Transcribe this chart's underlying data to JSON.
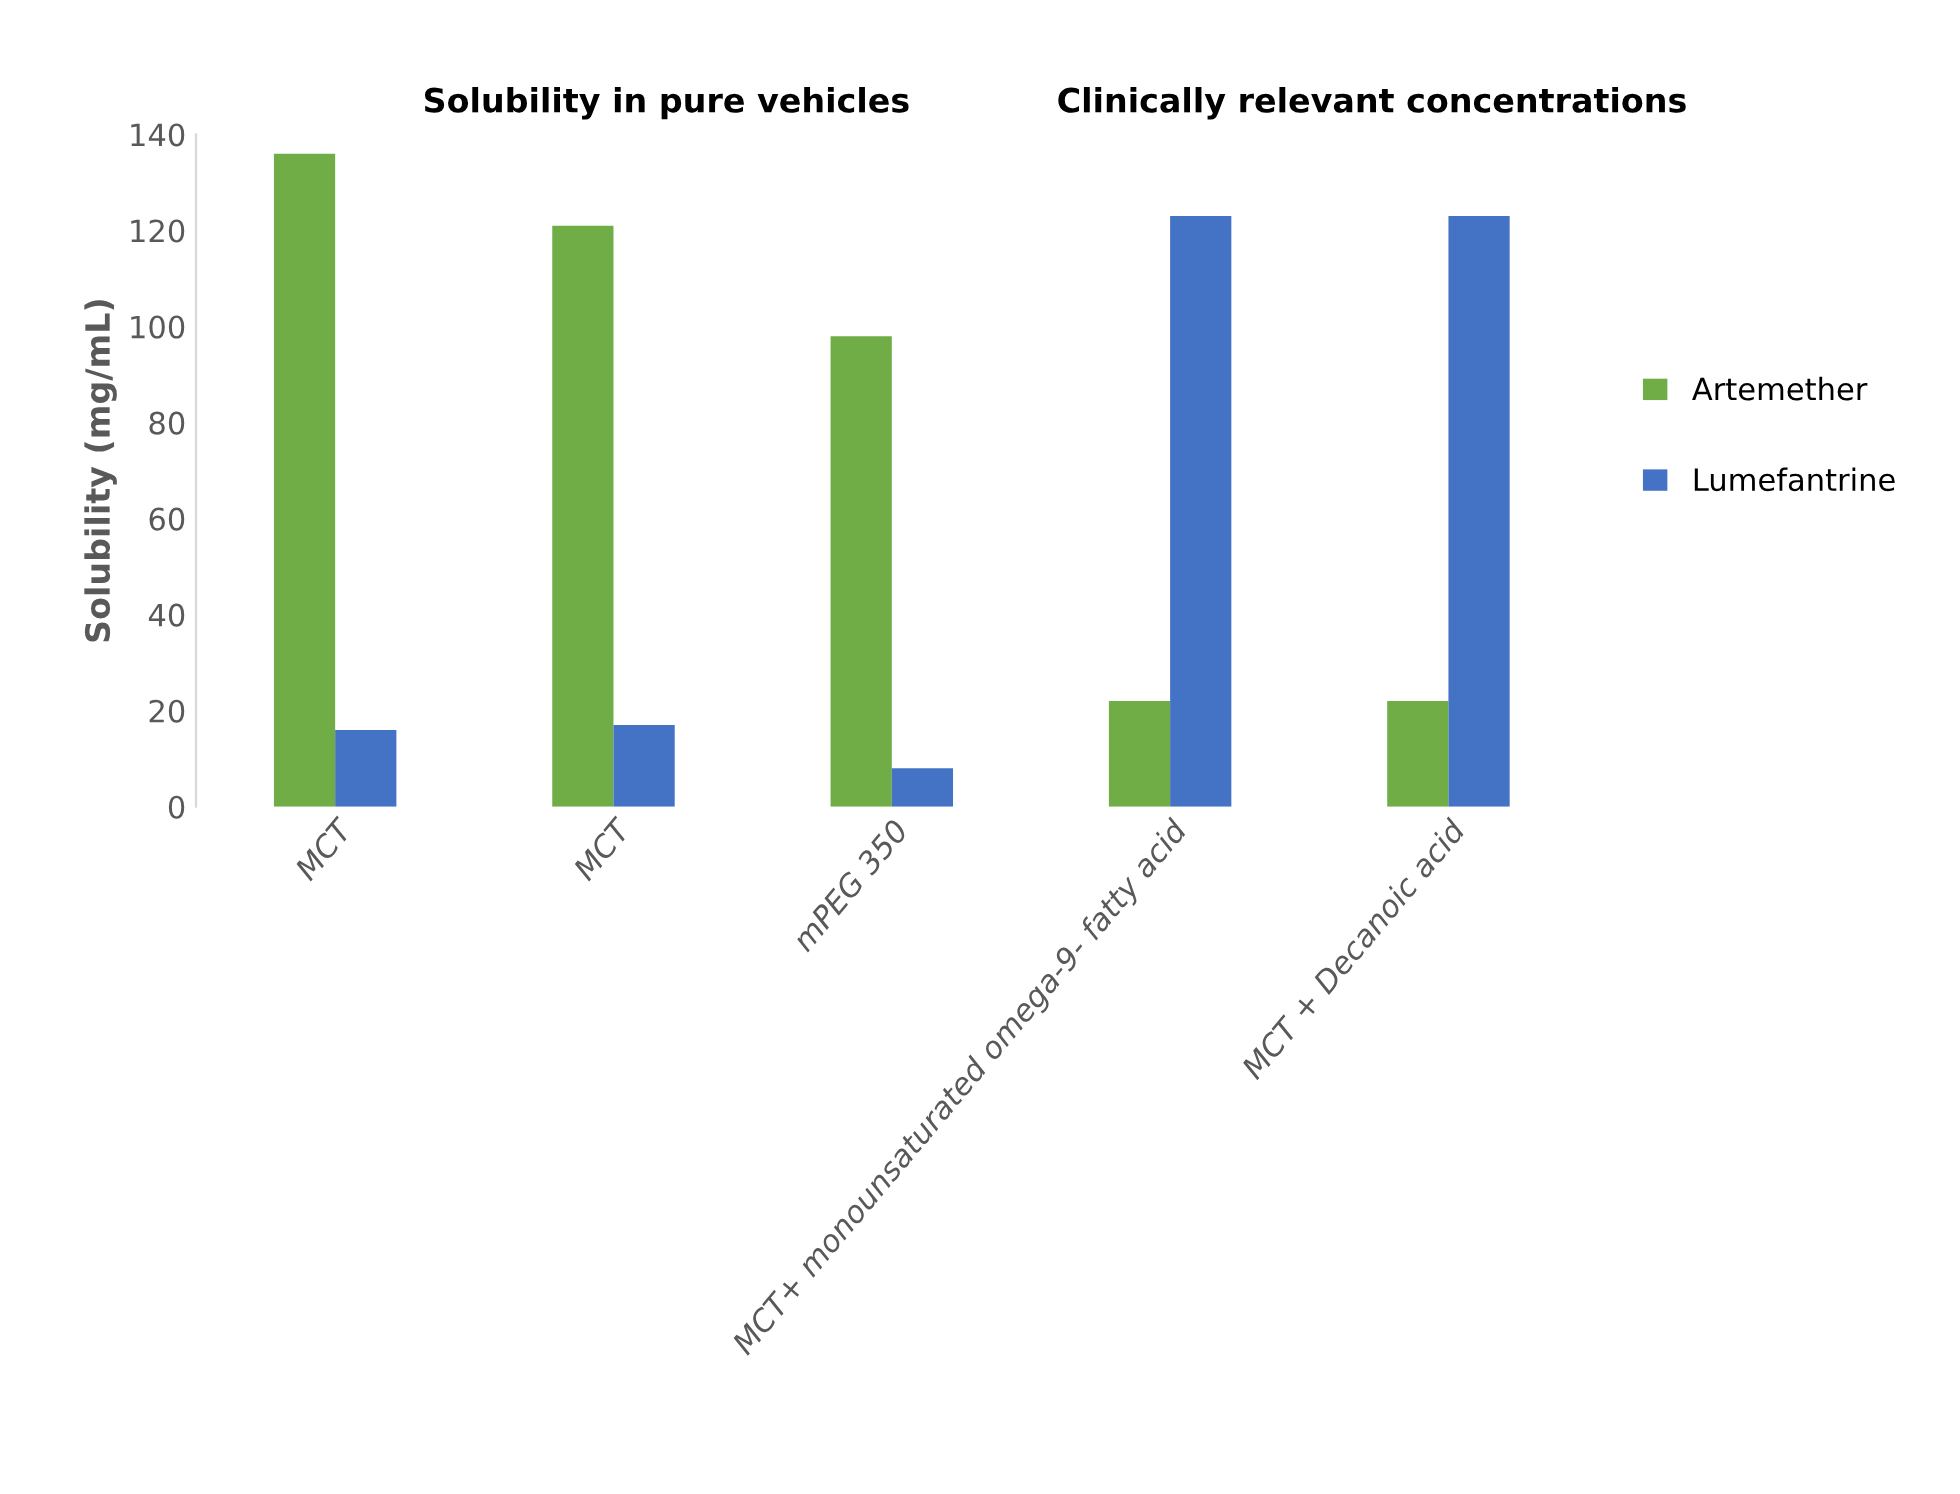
{
  "chart_data": {
    "type": "bar",
    "ylabel": "Solubility (mg/mL)",
    "categories": [
      "MCT",
      "MCT",
      "mPEG 350",
      "MCT+ monounsaturated omega-9- fatty acid",
      "MCT + Decanoic acid"
    ],
    "series": [
      {
        "name": "Artemether",
        "color": "#70ad47",
        "values": [
          136,
          121,
          98,
          22,
          22
        ]
      },
      {
        "name": "Lumefantrine",
        "color": "#4472c4",
        "values": [
          16,
          17,
          8,
          123,
          123
        ]
      }
    ],
    "ylim": [
      0,
      140
    ],
    "yticks": [
      0,
      20,
      40,
      60,
      80,
      100,
      120,
      140
    ],
    "annotations": [
      "Solubility in pure vehicles",
      "Clinically relevant concentrations"
    ],
    "grid": false,
    "legend": "right"
  }
}
